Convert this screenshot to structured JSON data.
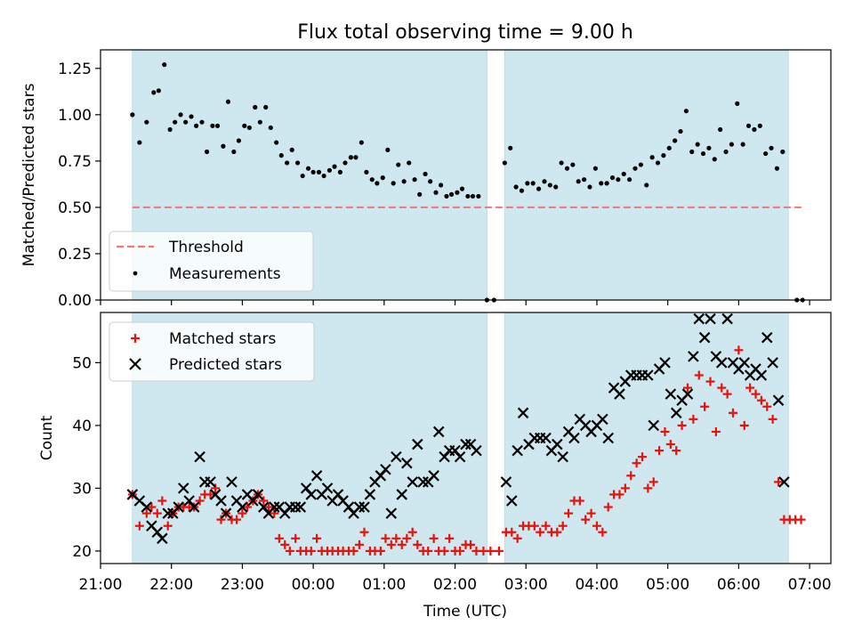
{
  "chart_data": {
    "type": "scatter",
    "title": "Flux total observing time = 9.00 h",
    "xlabel": "Time (UTC)",
    "x_ticks": [
      "21:00",
      "22:00",
      "23:00",
      "00:00",
      "01:00",
      "02:00",
      "03:00",
      "04:00",
      "05:00",
      "06:00",
      "07:00"
    ],
    "x_range_hours": [
      21.0,
      31.3
    ],
    "observing_windows_hours": [
      [
        21.45,
        26.45
      ],
      [
        26.7,
        30.7
      ]
    ],
    "colors": {
      "window": "#cfe8ef",
      "threshold": "#f07777",
      "measurements": "#000000",
      "matched": "#e8120c",
      "predicted": "#000000"
    },
    "top": {
      "ylabel": "Matched/Predicted stars",
      "ylim": [
        0,
        1.35
      ],
      "y_ticks": [
        "0.00",
        "0.25",
        "0.50",
        "0.75",
        "1.00",
        "1.25"
      ],
      "threshold": 0.5,
      "legend_position": "lower-left",
      "legend": [
        "Threshold",
        "Measurements"
      ],
      "measurements": [
        [
          21.45,
          1.0
        ],
        [
          21.55,
          0.85
        ],
        [
          21.65,
          0.96
        ],
        [
          21.75,
          1.12
        ],
        [
          21.82,
          1.13
        ],
        [
          21.9,
          1.27
        ],
        [
          21.98,
          0.92
        ],
        [
          22.05,
          0.96
        ],
        [
          22.13,
          1.0
        ],
        [
          22.2,
          0.96
        ],
        [
          22.28,
          0.99
        ],
        [
          22.35,
          0.94
        ],
        [
          22.43,
          0.96
        ],
        [
          22.5,
          0.8
        ],
        [
          22.58,
          0.94
        ],
        [
          22.65,
          0.94
        ],
        [
          22.73,
          0.83
        ],
        [
          22.8,
          1.07
        ],
        [
          22.88,
          0.8
        ],
        [
          22.95,
          0.86
        ],
        [
          23.03,
          0.94
        ],
        [
          23.1,
          0.93
        ],
        [
          23.18,
          1.04
        ],
        [
          23.25,
          0.96
        ],
        [
          23.33,
          1.04
        ],
        [
          23.4,
          0.93
        ],
        [
          23.48,
          0.85
        ],
        [
          23.55,
          0.78
        ],
        [
          23.63,
          0.74
        ],
        [
          23.7,
          0.81
        ],
        [
          23.78,
          0.74
        ],
        [
          23.85,
          0.67
        ],
        [
          23.93,
          0.71
        ],
        [
          24.0,
          0.69
        ],
        [
          24.08,
          0.69
        ],
        [
          24.15,
          0.67
        ],
        [
          24.23,
          0.7
        ],
        [
          24.3,
          0.72
        ],
        [
          24.38,
          0.69
        ],
        [
          24.45,
          0.74
        ],
        [
          24.53,
          0.77
        ],
        [
          24.6,
          0.77
        ],
        [
          24.68,
          0.85
        ],
        [
          24.75,
          0.69
        ],
        [
          24.83,
          0.65
        ],
        [
          24.9,
          0.63
        ],
        [
          24.98,
          0.66
        ],
        [
          25.05,
          0.81
        ],
        [
          25.13,
          0.63
        ],
        [
          25.2,
          0.73
        ],
        [
          25.28,
          0.64
        ],
        [
          25.35,
          0.74
        ],
        [
          25.43,
          0.65
        ],
        [
          25.5,
          0.57
        ],
        [
          25.58,
          0.68
        ],
        [
          25.65,
          0.64
        ],
        [
          25.73,
          0.58
        ],
        [
          25.8,
          0.62
        ],
        [
          25.88,
          0.56
        ],
        [
          25.95,
          0.57
        ],
        [
          26.03,
          0.58
        ],
        [
          26.1,
          0.6
        ],
        [
          26.18,
          0.56
        ],
        [
          26.25,
          0.56
        ],
        [
          26.33,
          0.56
        ],
        [
          26.45,
          0.0
        ],
        [
          26.55,
          0.0
        ],
        [
          26.7,
          0.74
        ],
        [
          26.78,
          0.82
        ],
        [
          26.86,
          0.61
        ],
        [
          26.94,
          0.59
        ],
        [
          27.02,
          0.63
        ],
        [
          27.1,
          0.63
        ],
        [
          27.18,
          0.6
        ],
        [
          27.26,
          0.64
        ],
        [
          27.34,
          0.62
        ],
        [
          27.42,
          0.61
        ],
        [
          27.5,
          0.74
        ],
        [
          27.58,
          0.71
        ],
        [
          27.66,
          0.73
        ],
        [
          27.74,
          0.64
        ],
        [
          27.82,
          0.65
        ],
        [
          27.9,
          0.61
        ],
        [
          27.98,
          0.71
        ],
        [
          28.06,
          0.63
        ],
        [
          28.14,
          0.63
        ],
        [
          28.22,
          0.66
        ],
        [
          28.3,
          0.65
        ],
        [
          28.38,
          0.68
        ],
        [
          28.46,
          0.65
        ],
        [
          28.54,
          0.71
        ],
        [
          28.62,
          0.73
        ],
        [
          28.7,
          0.62
        ],
        [
          28.78,
          0.77
        ],
        [
          28.86,
          0.74
        ],
        [
          28.94,
          0.78
        ],
        [
          29.02,
          0.82
        ],
        [
          29.1,
          0.86
        ],
        [
          29.18,
          0.91
        ],
        [
          29.26,
          1.02
        ],
        [
          29.34,
          0.8
        ],
        [
          29.42,
          0.84
        ],
        [
          29.5,
          0.79
        ],
        [
          29.58,
          0.82
        ],
        [
          29.66,
          0.76
        ],
        [
          29.74,
          0.92
        ],
        [
          29.82,
          0.8
        ],
        [
          29.9,
          0.84
        ],
        [
          29.98,
          1.06
        ],
        [
          30.06,
          0.84
        ],
        [
          30.14,
          0.94
        ],
        [
          30.22,
          0.92
        ],
        [
          30.3,
          0.94
        ],
        [
          30.38,
          0.79
        ],
        [
          30.46,
          0.82
        ],
        [
          30.54,
          0.71
        ],
        [
          30.62,
          0.8
        ],
        [
          30.82,
          0.0
        ],
        [
          30.9,
          0.0
        ]
      ]
    },
    "bottom": {
      "ylabel": "Count",
      "ylim": [
        18,
        58
      ],
      "y_ticks": [
        "20",
        "30",
        "40",
        "50"
      ],
      "legend_position": "upper-left",
      "legend": [
        "Matched stars",
        "Predicted stars"
      ],
      "matched": [
        [
          21.45,
          29
        ],
        [
          21.55,
          24
        ],
        [
          21.65,
          26
        ],
        [
          21.72,
          27
        ],
        [
          21.8,
          26
        ],
        [
          21.87,
          28
        ],
        [
          21.95,
          24
        ],
        [
          22.02,
          26
        ],
        [
          22.1,
          27
        ],
        [
          22.17,
          27
        ],
        [
          22.25,
          27
        ],
        [
          22.32,
          27
        ],
        [
          22.4,
          28
        ],
        [
          22.47,
          29
        ],
        [
          22.55,
          29
        ],
        [
          22.62,
          30
        ],
        [
          22.7,
          25
        ],
        [
          22.77,
          26
        ],
        [
          22.85,
          25
        ],
        [
          22.92,
          25
        ],
        [
          23.0,
          26
        ],
        [
          23.07,
          27
        ],
        [
          23.15,
          28
        ],
        [
          23.22,
          29
        ],
        [
          23.3,
          28
        ],
        [
          23.37,
          27
        ],
        [
          23.45,
          26
        ],
        [
          23.52,
          22
        ],
        [
          23.6,
          21
        ],
        [
          23.67,
          20
        ],
        [
          23.75,
          22
        ],
        [
          23.82,
          20
        ],
        [
          23.9,
          20
        ],
        [
          23.97,
          20
        ],
        [
          24.05,
          22
        ],
        [
          24.12,
          20
        ],
        [
          24.2,
          20
        ],
        [
          24.27,
          20
        ],
        [
          24.35,
          20
        ],
        [
          24.42,
          20
        ],
        [
          24.5,
          20
        ],
        [
          24.57,
          20
        ],
        [
          24.65,
          21
        ],
        [
          24.72,
          23
        ],
        [
          24.8,
          20
        ],
        [
          24.87,
          20
        ],
        [
          24.95,
          20
        ],
        [
          25.02,
          22
        ],
        [
          25.1,
          21
        ],
        [
          25.17,
          22
        ],
        [
          25.25,
          21
        ],
        [
          25.32,
          22
        ],
        [
          25.4,
          23
        ],
        [
          25.47,
          21
        ],
        [
          25.55,
          20
        ],
        [
          25.62,
          20
        ],
        [
          25.7,
          22
        ],
        [
          25.77,
          20
        ],
        [
          25.85,
          20
        ],
        [
          25.92,
          22
        ],
        [
          26.0,
          20
        ],
        [
          26.07,
          20
        ],
        [
          26.15,
          21
        ],
        [
          26.22,
          21
        ],
        [
          26.3,
          20
        ],
        [
          26.4,
          20
        ],
        [
          26.5,
          20
        ],
        [
          26.62,
          20
        ],
        [
          26.72,
          23
        ],
        [
          26.8,
          23
        ],
        [
          26.88,
          22
        ],
        [
          26.96,
          24
        ],
        [
          27.04,
          24
        ],
        [
          27.12,
          24
        ],
        [
          27.2,
          23
        ],
        [
          27.28,
          24
        ],
        [
          27.36,
          23
        ],
        [
          27.44,
          23
        ],
        [
          27.52,
          24
        ],
        [
          27.6,
          26
        ],
        [
          27.68,
          28
        ],
        [
          27.76,
          28
        ],
        [
          27.84,
          25
        ],
        [
          27.92,
          26
        ],
        [
          28.0,
          24
        ],
        [
          28.08,
          23
        ],
        [
          28.16,
          27
        ],
        [
          28.24,
          29
        ],
        [
          28.32,
          29
        ],
        [
          28.4,
          30
        ],
        [
          28.48,
          32
        ],
        [
          28.56,
          34
        ],
        [
          28.64,
          35
        ],
        [
          28.72,
          30
        ],
        [
          28.8,
          31
        ],
        [
          28.88,
          36
        ],
        [
          28.96,
          39
        ],
        [
          29.04,
          37
        ],
        [
          29.12,
          36
        ],
        [
          29.2,
          40
        ],
        [
          29.28,
          46
        ],
        [
          29.36,
          41
        ],
        [
          29.44,
          48
        ],
        [
          29.52,
          43
        ],
        [
          29.6,
          47
        ],
        [
          29.68,
          39
        ],
        [
          29.76,
          46
        ],
        [
          29.84,
          45
        ],
        [
          29.92,
          42
        ],
        [
          30.0,
          52
        ],
        [
          30.08,
          40
        ],
        [
          30.16,
          46
        ],
        [
          30.24,
          45
        ],
        [
          30.32,
          44
        ],
        [
          30.4,
          43
        ],
        [
          30.48,
          41
        ],
        [
          30.56,
          31
        ],
        [
          30.64,
          25
        ],
        [
          30.72,
          25
        ],
        [
          30.8,
          25
        ],
        [
          30.88,
          25
        ]
      ],
      "predicted": [
        [
          21.45,
          29
        ],
        [
          21.55,
          28
        ],
        [
          21.65,
          27
        ],
        [
          21.72,
          24
        ],
        [
          21.8,
          23
        ],
        [
          21.87,
          22
        ],
        [
          21.95,
          26
        ],
        [
          22.02,
          26
        ],
        [
          22.1,
          27
        ],
        [
          22.17,
          30
        ],
        [
          22.25,
          28
        ],
        [
          22.32,
          27
        ],
        [
          22.4,
          35
        ],
        [
          22.47,
          31
        ],
        [
          22.55,
          31
        ],
        [
          22.62,
          29
        ],
        [
          22.7,
          28
        ],
        [
          22.77,
          26
        ],
        [
          22.85,
          31
        ],
        [
          22.92,
          28
        ],
        [
          23.0,
          27
        ],
        [
          23.07,
          29
        ],
        [
          23.15,
          28
        ],
        [
          23.22,
          29
        ],
        [
          23.3,
          27
        ],
        [
          23.37,
          26
        ],
        [
          23.45,
          27
        ],
        [
          23.52,
          27
        ],
        [
          23.6,
          26
        ],
        [
          23.67,
          27
        ],
        [
          23.75,
          27
        ],
        [
          23.82,
          27
        ],
        [
          23.9,
          30
        ],
        [
          23.97,
          29
        ],
        [
          24.05,
          32
        ],
        [
          24.12,
          29
        ],
        [
          24.2,
          30
        ],
        [
          24.27,
          28
        ],
        [
          24.35,
          29
        ],
        [
          24.42,
          28
        ],
        [
          24.5,
          27
        ],
        [
          24.57,
          26
        ],
        [
          24.65,
          27
        ],
        [
          24.72,
          27
        ],
        [
          24.8,
          29
        ],
        [
          24.87,
          31
        ],
        [
          24.95,
          32
        ],
        [
          25.02,
          33
        ],
        [
          25.1,
          26
        ],
        [
          25.17,
          35
        ],
        [
          25.25,
          29
        ],
        [
          25.32,
          34
        ],
        [
          25.4,
          31
        ],
        [
          25.47,
          37
        ],
        [
          25.55,
          31
        ],
        [
          25.62,
          31
        ],
        [
          25.7,
          32
        ],
        [
          25.77,
          39
        ],
        [
          25.85,
          35
        ],
        [
          25.92,
          36
        ],
        [
          26.0,
          36
        ],
        [
          26.07,
          35
        ],
        [
          26.15,
          37
        ],
        [
          26.22,
          37
        ],
        [
          26.3,
          36
        ],
        [
          26.72,
          31
        ],
        [
          26.8,
          28
        ],
        [
          26.88,
          36
        ],
        [
          26.96,
          42
        ],
        [
          27.04,
          37
        ],
        [
          27.12,
          38
        ],
        [
          27.2,
          38
        ],
        [
          27.28,
          38
        ],
        [
          27.36,
          36
        ],
        [
          27.44,
          37
        ],
        [
          27.52,
          35
        ],
        [
          27.6,
          39
        ],
        [
          27.68,
          38
        ],
        [
          27.76,
          41
        ],
        [
          27.84,
          40
        ],
        [
          27.92,
          39
        ],
        [
          28.0,
          40
        ],
        [
          28.08,
          41
        ],
        [
          28.16,
          38
        ],
        [
          28.24,
          46
        ],
        [
          28.32,
          45
        ],
        [
          28.4,
          47
        ],
        [
          28.48,
          48
        ],
        [
          28.56,
          48
        ],
        [
          28.64,
          48
        ],
        [
          28.72,
          48
        ],
        [
          28.8,
          40
        ],
        [
          28.88,
          49
        ],
        [
          28.96,
          50
        ],
        [
          29.04,
          45
        ],
        [
          29.12,
          42
        ],
        [
          29.2,
          44
        ],
        [
          29.28,
          45
        ],
        [
          29.36,
          51
        ],
        [
          29.44,
          57
        ],
        [
          29.52,
          54
        ],
        [
          29.6,
          57
        ],
        [
          29.68,
          51
        ],
        [
          29.76,
          50
        ],
        [
          29.84,
          57
        ],
        [
          29.92,
          50
        ],
        [
          30.0,
          49
        ],
        [
          30.08,
          50
        ],
        [
          30.16,
          48
        ],
        [
          30.24,
          49
        ],
        [
          30.32,
          48
        ],
        [
          30.4,
          54
        ],
        [
          30.48,
          50
        ],
        [
          30.56,
          44
        ],
        [
          30.64,
          31
        ]
      ]
    }
  }
}
